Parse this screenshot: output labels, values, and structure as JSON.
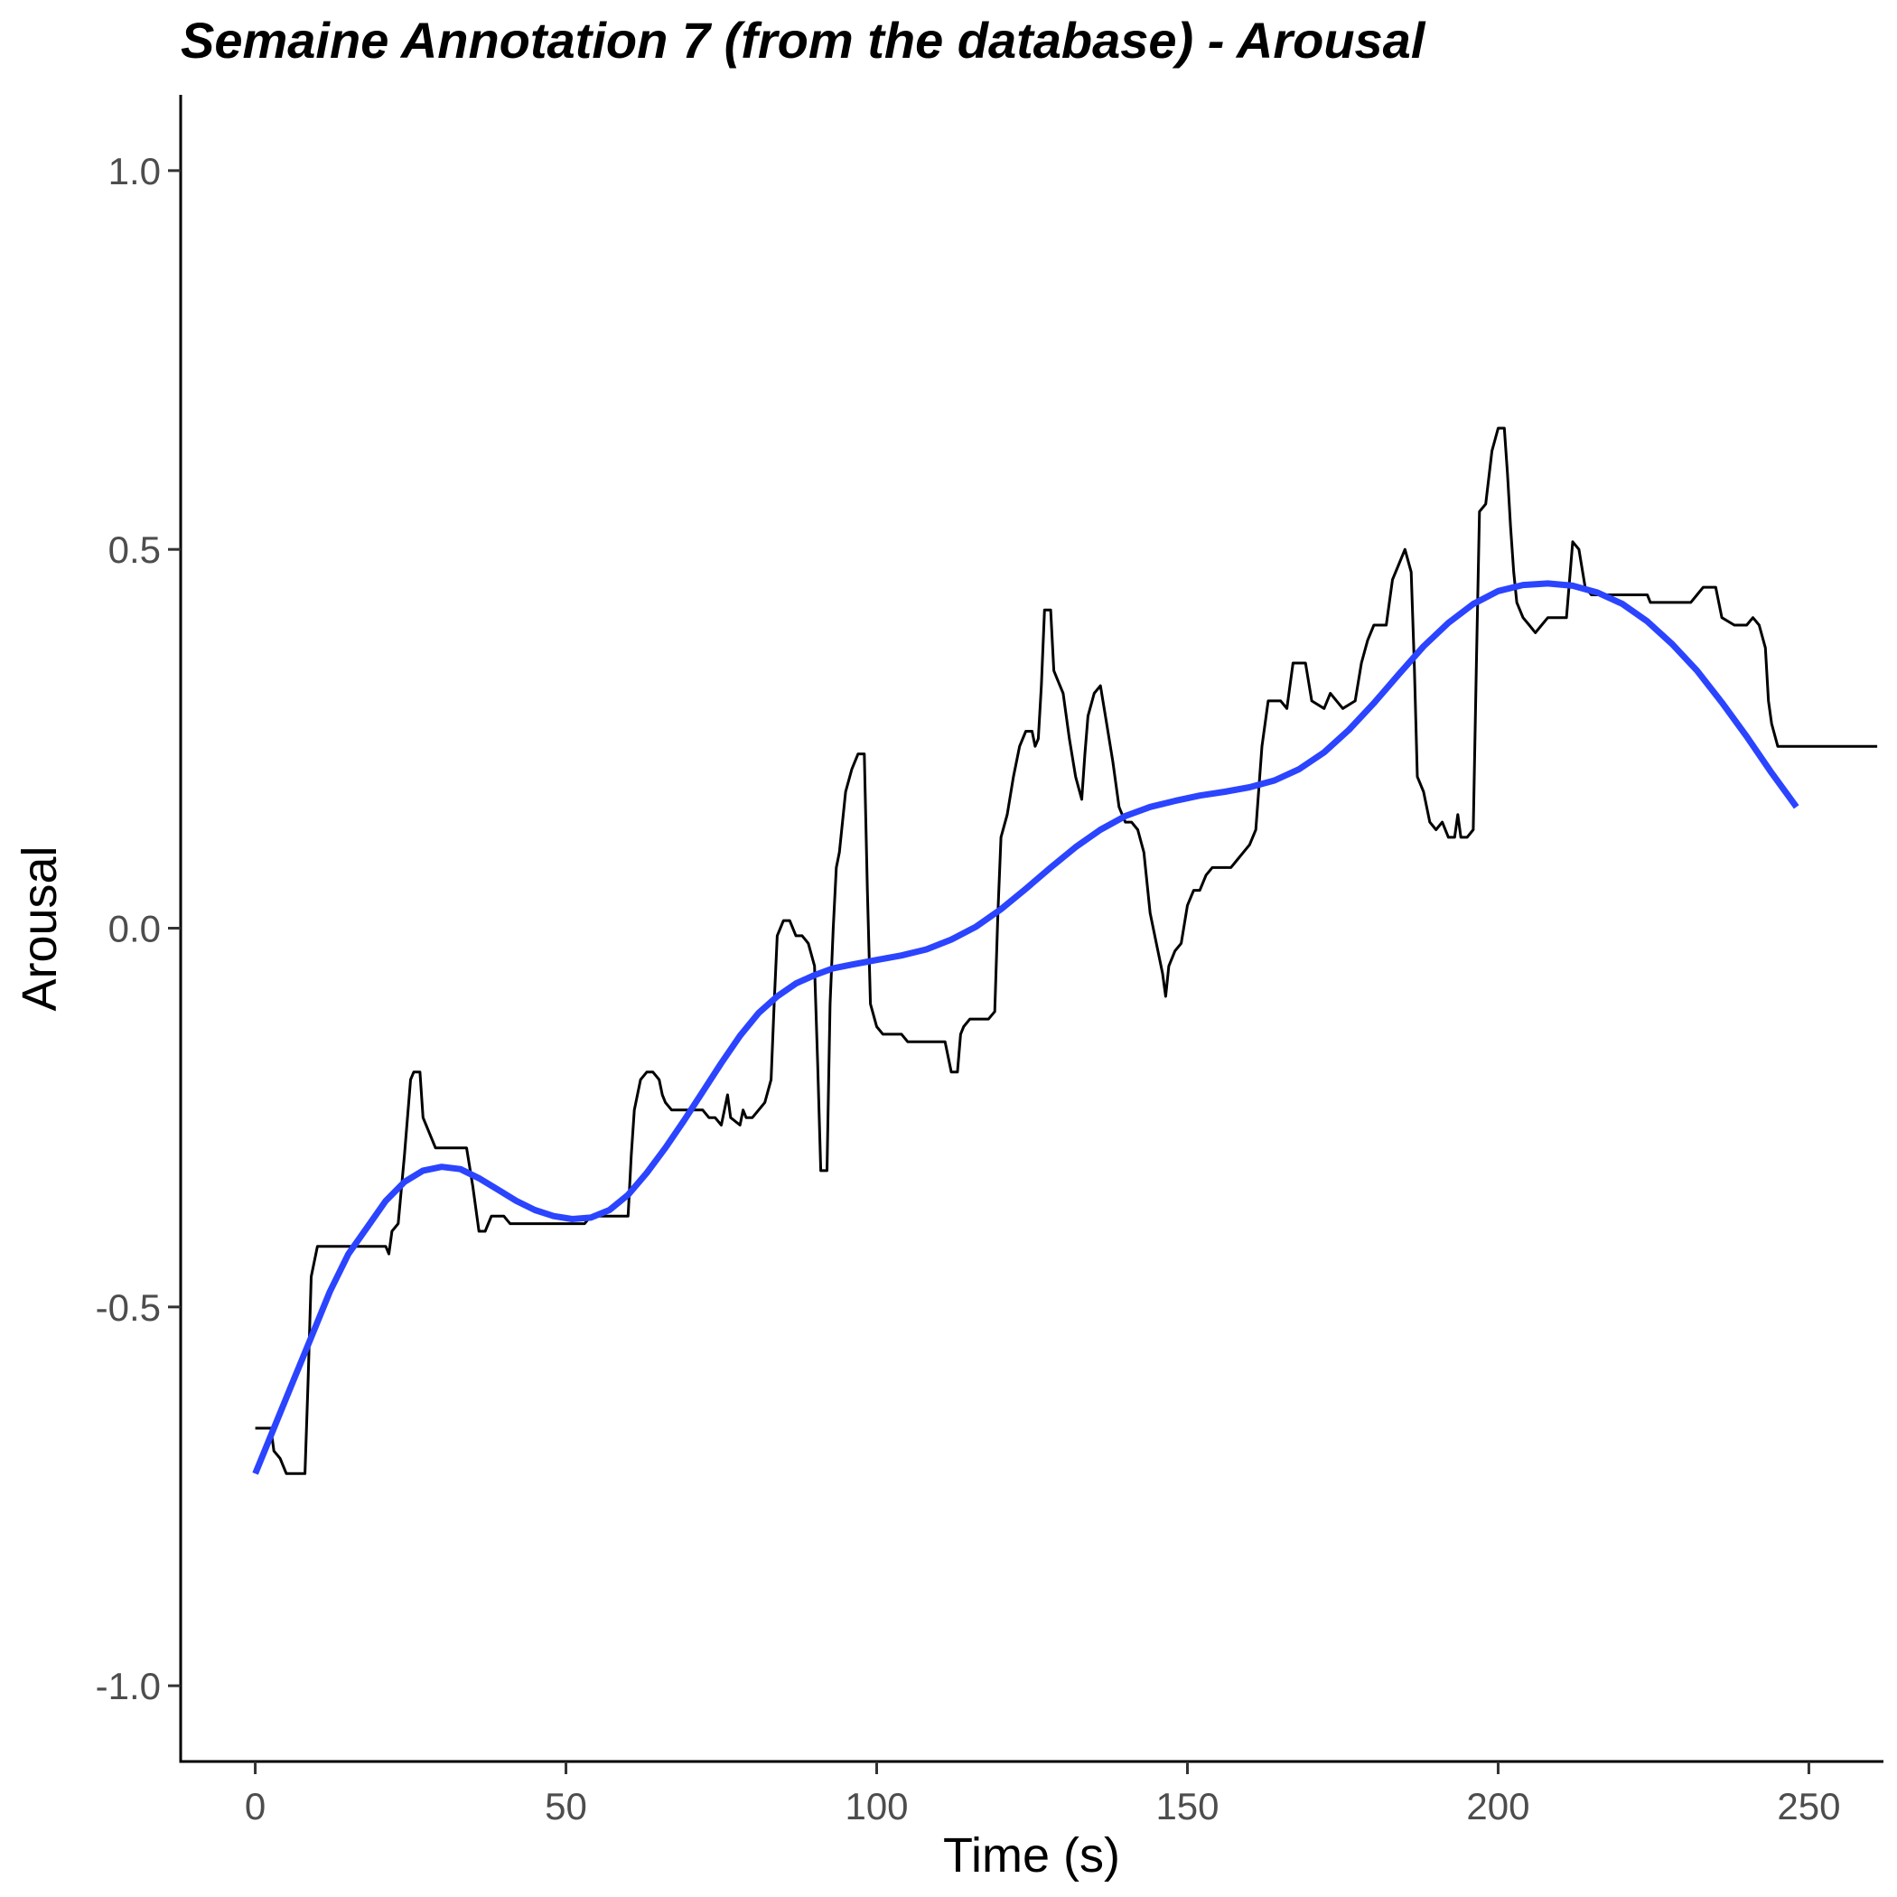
{
  "chart_data": {
    "type": "line",
    "title": "Semaine Annotation 7 (from the database) - Arousal",
    "xlabel": "Time (s)",
    "ylabel": "Arousal",
    "xlim": [
      -12,
      262
    ],
    "ylim": [
      -1.1,
      1.1
    ],
    "x_ticks": [
      0,
      50,
      100,
      150,
      200,
      250
    ],
    "x_tick_labels": [
      "0",
      "50",
      "100",
      "150",
      "200",
      "250"
    ],
    "y_ticks": [
      -1.0,
      -0.5,
      0.0,
      0.5,
      1.0
    ],
    "y_tick_labels": [
      "-1.0",
      "-0.5",
      "0.0",
      "0.5",
      "1.0"
    ],
    "grid": false,
    "legend": "none",
    "series": [
      {
        "color": "#000000",
        "points": [
          [
            0,
            -0.66
          ],
          [
            2.5,
            -0.66
          ],
          [
            3,
            -0.69
          ],
          [
            4,
            -0.7
          ],
          [
            5,
            -0.72
          ],
          [
            8,
            -0.72
          ],
          [
            8.5,
            -0.6
          ],
          [
            9,
            -0.46
          ],
          [
            10,
            -0.42
          ],
          [
            21,
            -0.42
          ],
          [
            21.5,
            -0.43
          ],
          [
            22,
            -0.4
          ],
          [
            23,
            -0.39
          ],
          [
            24,
            -0.3
          ],
          [
            25,
            -0.2
          ],
          [
            25.5,
            -0.19
          ],
          [
            26.5,
            -0.19
          ],
          [
            27,
            -0.25
          ],
          [
            28,
            -0.27
          ],
          [
            29,
            -0.29
          ],
          [
            34,
            -0.29
          ],
          [
            35,
            -0.34
          ],
          [
            36,
            -0.4
          ],
          [
            37,
            -0.4
          ],
          [
            38,
            -0.38
          ],
          [
            40,
            -0.38
          ],
          [
            41,
            -0.39
          ],
          [
            53,
            -0.39
          ],
          [
            54,
            -0.38
          ],
          [
            56,
            -0.38
          ],
          [
            57,
            -0.38
          ],
          [
            59,
            -0.38
          ],
          [
            60,
            -0.38
          ],
          [
            60.5,
            -0.3
          ],
          [
            61,
            -0.24
          ],
          [
            62,
            -0.2
          ],
          [
            63,
            -0.19
          ],
          [
            64,
            -0.19
          ],
          [
            65,
            -0.2
          ],
          [
            65.5,
            -0.22
          ],
          [
            66,
            -0.23
          ],
          [
            67,
            -0.24
          ],
          [
            68,
            -0.24
          ],
          [
            72,
            -0.24
          ],
          [
            73,
            -0.25
          ],
          [
            74,
            -0.25
          ],
          [
            75,
            -0.26
          ],
          [
            76,
            -0.22
          ],
          [
            76.5,
            -0.25
          ],
          [
            78,
            -0.26
          ],
          [
            78.5,
            -0.24
          ],
          [
            79,
            -0.25
          ],
          [
            80,
            -0.25
          ],
          [
            81,
            -0.24
          ],
          [
            82,
            -0.23
          ],
          [
            83,
            -0.2
          ],
          [
            83.5,
            -0.1
          ],
          [
            84,
            -0.01
          ],
          [
            85,
            0.01
          ],
          [
            86,
            0.01
          ],
          [
            87,
            -0.01
          ],
          [
            88,
            -0.01
          ],
          [
            89,
            -0.02
          ],
          [
            90,
            -0.05
          ],
          [
            90.5,
            -0.18
          ],
          [
            91,
            -0.32
          ],
          [
            92,
            -0.32
          ],
          [
            92.5,
            -0.1
          ],
          [
            93,
            0.0
          ],
          [
            93.5,
            0.08
          ],
          [
            94,
            0.1
          ],
          [
            95,
            0.18
          ],
          [
            96,
            0.21
          ],
          [
            97,
            0.23
          ],
          [
            98,
            0.23
          ],
          [
            98.5,
            0.05
          ],
          [
            99,
            -0.1
          ],
          [
            100,
            -0.13
          ],
          [
            101,
            -0.14
          ],
          [
            104,
            -0.14
          ],
          [
            105,
            -0.15
          ],
          [
            108,
            -0.15
          ],
          [
            111,
            -0.15
          ],
          [
            112,
            -0.19
          ],
          [
            113,
            -0.19
          ],
          [
            113.5,
            -0.14
          ],
          [
            114,
            -0.13
          ],
          [
            115,
            -0.12
          ],
          [
            118,
            -0.12
          ],
          [
            119,
            -0.11
          ],
          [
            119.5,
            0.02
          ],
          [
            120,
            0.12
          ],
          [
            121,
            0.15
          ],
          [
            122,
            0.2
          ],
          [
            123,
            0.24
          ],
          [
            124,
            0.26
          ],
          [
            125,
            0.26
          ],
          [
            125.5,
            0.24
          ],
          [
            126,
            0.25
          ],
          [
            126.5,
            0.32
          ],
          [
            127,
            0.42
          ],
          [
            128,
            0.42
          ],
          [
            128.5,
            0.34
          ],
          [
            129,
            0.33
          ],
          [
            130,
            0.31
          ],
          [
            131,
            0.25
          ],
          [
            132,
            0.2
          ],
          [
            133,
            0.17
          ],
          [
            133.5,
            0.23
          ],
          [
            134,
            0.28
          ],
          [
            135,
            0.31
          ],
          [
            136,
            0.32
          ],
          [
            137,
            0.27
          ],
          [
            138,
            0.22
          ],
          [
            139,
            0.16
          ],
          [
            140,
            0.14
          ],
          [
            141,
            0.14
          ],
          [
            142,
            0.13
          ],
          [
            143,
            0.1
          ],
          [
            144,
            0.02
          ],
          [
            145,
            -0.02
          ],
          [
            146,
            -0.06
          ],
          [
            146.5,
            -0.09
          ],
          [
            147,
            -0.05
          ],
          [
            148,
            -0.03
          ],
          [
            149,
            -0.02
          ],
          [
            150,
            0.03
          ],
          [
            151,
            0.05
          ],
          [
            152,
            0.05
          ],
          [
            153,
            0.07
          ],
          [
            154,
            0.08
          ],
          [
            156,
            0.08
          ],
          [
            157,
            0.08
          ],
          [
            158,
            0.09
          ],
          [
            159,
            0.1
          ],
          [
            160,
            0.11
          ],
          [
            161,
            0.13
          ],
          [
            162,
            0.24
          ],
          [
            163,
            0.3
          ],
          [
            165,
            0.3
          ],
          [
            166,
            0.29
          ],
          [
            167,
            0.35
          ],
          [
            169,
            0.35
          ],
          [
            170,
            0.3
          ],
          [
            172,
            0.29
          ],
          [
            173,
            0.31
          ],
          [
            174,
            0.3
          ],
          [
            175,
            0.29
          ],
          [
            177,
            0.3
          ],
          [
            178,
            0.35
          ],
          [
            179,
            0.38
          ],
          [
            180,
            0.4
          ],
          [
            182,
            0.4
          ],
          [
            183,
            0.46
          ],
          [
            184,
            0.48
          ],
          [
            185,
            0.5
          ],
          [
            186,
            0.47
          ],
          [
            186.5,
            0.35
          ],
          [
            187,
            0.2
          ],
          [
            188,
            0.18
          ],
          [
            189,
            0.14
          ],
          [
            190,
            0.13
          ],
          [
            191,
            0.14
          ],
          [
            192,
            0.12
          ],
          [
            193,
            0.12
          ],
          [
            193.5,
            0.15
          ],
          [
            194,
            0.12
          ],
          [
            195,
            0.12
          ],
          [
            196,
            0.13
          ],
          [
            196.5,
            0.35
          ],
          [
            197,
            0.55
          ],
          [
            198,
            0.56
          ],
          [
            199,
            0.63
          ],
          [
            200,
            0.66
          ],
          [
            201,
            0.66
          ],
          [
            201.5,
            0.6
          ],
          [
            202,
            0.53
          ],
          [
            202.5,
            0.47
          ],
          [
            203,
            0.43
          ],
          [
            204,
            0.41
          ],
          [
            205,
            0.4
          ],
          [
            206,
            0.39
          ],
          [
            207,
            0.4
          ],
          [
            208,
            0.41
          ],
          [
            210,
            0.41
          ],
          [
            211,
            0.41
          ],
          [
            212,
            0.51
          ],
          [
            213,
            0.5
          ],
          [
            214,
            0.45
          ],
          [
            215,
            0.44
          ],
          [
            217,
            0.44
          ],
          [
            224,
            0.44
          ],
          [
            224.5,
            0.43
          ],
          [
            231,
            0.43
          ],
          [
            232,
            0.44
          ],
          [
            233,
            0.45
          ],
          [
            235,
            0.45
          ],
          [
            236,
            0.41
          ],
          [
            238,
            0.4
          ],
          [
            240,
            0.4
          ],
          [
            241,
            0.41
          ],
          [
            242,
            0.4
          ],
          [
            243,
            0.37
          ],
          [
            243.5,
            0.3
          ],
          [
            244,
            0.27
          ],
          [
            245,
            0.24
          ],
          [
            249,
            0.24
          ],
          [
            260,
            0.24
          ],
          [
            261,
            0.24
          ]
        ]
      },
      {
        "color": "#2b44ff",
        "points": [
          [
            0,
            -0.72
          ],
          [
            3,
            -0.66
          ],
          [
            6,
            -0.6
          ],
          [
            9,
            -0.54
          ],
          [
            12,
            -0.48
          ],
          [
            15,
            -0.43
          ],
          [
            18,
            -0.395
          ],
          [
            21,
            -0.36
          ],
          [
            24,
            -0.335
          ],
          [
            27,
            -0.32
          ],
          [
            30,
            -0.315
          ],
          [
            33,
            -0.318
          ],
          [
            36,
            -0.33
          ],
          [
            39,
            -0.345
          ],
          [
            42,
            -0.36
          ],
          [
            45,
            -0.372
          ],
          [
            48,
            -0.38
          ],
          [
            51,
            -0.384
          ],
          [
            54,
            -0.382
          ],
          [
            57,
            -0.372
          ],
          [
            60,
            -0.352
          ],
          [
            63,
            -0.323
          ],
          [
            66,
            -0.29
          ],
          [
            69,
            -0.254
          ],
          [
            72,
            -0.216
          ],
          [
            75,
            -0.178
          ],
          [
            78,
            -0.142
          ],
          [
            81,
            -0.112
          ],
          [
            84,
            -0.09
          ],
          [
            87,
            -0.073
          ],
          [
            90,
            -0.062
          ],
          [
            93,
            -0.053
          ],
          [
            96,
            -0.048
          ],
          [
            100,
            -0.042
          ],
          [
            104,
            -0.036
          ],
          [
            108,
            -0.028
          ],
          [
            112,
            -0.015
          ],
          [
            116,
            0.002
          ],
          [
            120,
            0.025
          ],
          [
            124,
            0.052
          ],
          [
            128,
            0.08
          ],
          [
            132,
            0.107
          ],
          [
            136,
            0.13
          ],
          [
            140,
            0.148
          ],
          [
            144,
            0.16
          ],
          [
            148,
            0.168
          ],
          [
            152,
            0.175
          ],
          [
            156,
            0.18
          ],
          [
            160,
            0.186
          ],
          [
            164,
            0.195
          ],
          [
            168,
            0.21
          ],
          [
            172,
            0.232
          ],
          [
            176,
            0.262
          ],
          [
            180,
            0.297
          ],
          [
            184,
            0.335
          ],
          [
            188,
            0.372
          ],
          [
            192,
            0.403
          ],
          [
            196,
            0.428
          ],
          [
            200,
            0.445
          ],
          [
            204,
            0.453
          ],
          [
            208,
            0.455
          ],
          [
            212,
            0.452
          ],
          [
            216,
            0.443
          ],
          [
            220,
            0.428
          ],
          [
            224,
            0.405
          ],
          [
            228,
            0.375
          ],
          [
            232,
            0.34
          ],
          [
            236,
            0.298
          ],
          [
            240,
            0.253
          ],
          [
            244,
            0.205
          ],
          [
            248,
            0.16
          ]
        ]
      }
    ]
  }
}
